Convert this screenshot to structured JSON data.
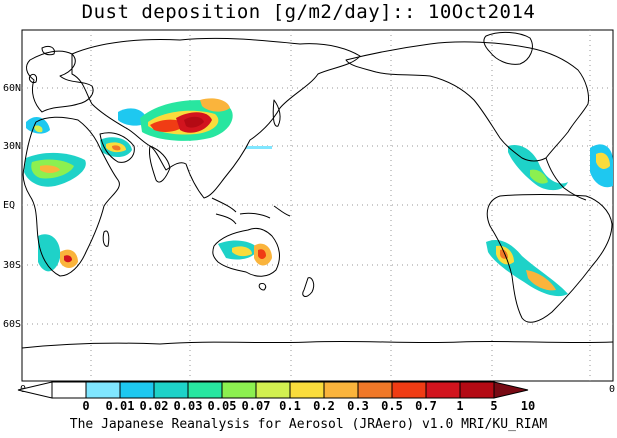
{
  "map": {
    "title": "Dust deposition [g/m2/day]:: 10Oct2014",
    "lat_labels": [
      "60N",
      "30N",
      "EQ",
      "30S",
      "60S"
    ],
    "colorbar": {
      "end_label_left": "0",
      "end_label_right": "0",
      "tick_labels": [
        "0",
        "0.01",
        "0.02",
        "0.03",
        "0.05",
        "0.07",
        "0.1",
        "0.2",
        "0.3",
        "0.5",
        "0.7",
        "1",
        "5",
        "10"
      ],
      "colors": [
        "#ffffff",
        "#ffffff",
        "#80e6ff",
        "#1ec8f0",
        "#1ed2c8",
        "#28e6a0",
        "#8cf050",
        "#d2f050",
        "#fadc3c",
        "#fab43c",
        "#f07828",
        "#f03c14",
        "#d2141e",
        "#b40a14",
        "#780a14"
      ]
    },
    "footer": "The Japanese Reanalysis for Aerosol (JRAero) v1.0 MRI/KU_RIAM"
  }
}
